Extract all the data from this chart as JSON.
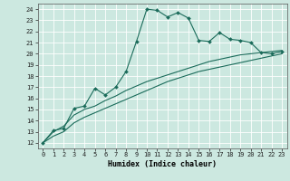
{
  "title": "",
  "xlabel": "Humidex (Indice chaleur)",
  "ylabel": "",
  "xlim": [
    -0.5,
    23.5
  ],
  "ylim": [
    11.5,
    24.5
  ],
  "xticks": [
    0,
    1,
    2,
    3,
    4,
    5,
    6,
    7,
    8,
    9,
    10,
    11,
    12,
    13,
    14,
    15,
    16,
    17,
    18,
    19,
    20,
    21,
    22,
    23
  ],
  "yticks": [
    12,
    13,
    14,
    15,
    16,
    17,
    18,
    19,
    20,
    21,
    22,
    23,
    24
  ],
  "bg_color": "#cce8e0",
  "grid_color": "#ffffff",
  "line_color": "#1a6b5a",
  "line1_x": [
    0,
    1,
    2,
    3,
    4,
    5,
    6,
    7,
    8,
    9,
    10,
    11,
    12,
    13,
    14,
    15,
    16,
    17,
    18,
    19,
    20,
    21,
    22,
    23
  ],
  "line1_y": [
    12.0,
    13.1,
    13.3,
    15.1,
    15.3,
    16.9,
    16.3,
    17.0,
    18.4,
    21.1,
    24.0,
    23.9,
    23.3,
    23.7,
    23.2,
    21.2,
    21.1,
    21.9,
    21.3,
    21.2,
    21.0,
    20.1,
    20.0,
    20.2
  ],
  "line2_x": [
    0,
    1,
    2,
    3,
    4,
    5,
    6,
    7,
    8,
    9,
    10,
    11,
    12,
    13,
    14,
    15,
    16,
    17,
    18,
    19,
    20,
    21,
    22,
    23
  ],
  "line2_y": [
    12.0,
    13.0,
    13.5,
    14.5,
    15.0,
    15.3,
    15.8,
    16.2,
    16.7,
    17.1,
    17.5,
    17.8,
    18.1,
    18.4,
    18.7,
    19.0,
    19.3,
    19.5,
    19.7,
    19.9,
    20.0,
    20.1,
    20.2,
    20.3
  ],
  "line3_x": [
    0,
    1,
    2,
    3,
    4,
    5,
    6,
    7,
    8,
    9,
    10,
    11,
    12,
    13,
    14,
    15,
    16,
    17,
    18,
    19,
    20,
    21,
    22,
    23
  ],
  "line3_y": [
    12.0,
    12.6,
    13.0,
    13.8,
    14.3,
    14.7,
    15.1,
    15.5,
    15.9,
    16.3,
    16.7,
    17.1,
    17.5,
    17.8,
    18.1,
    18.4,
    18.6,
    18.8,
    19.0,
    19.2,
    19.4,
    19.6,
    19.8,
    20.0
  ],
  "lw": 0.8,
  "marker_size": 2.0,
  "tick_fontsize": 5.0,
  "xlabel_fontsize": 6.0
}
